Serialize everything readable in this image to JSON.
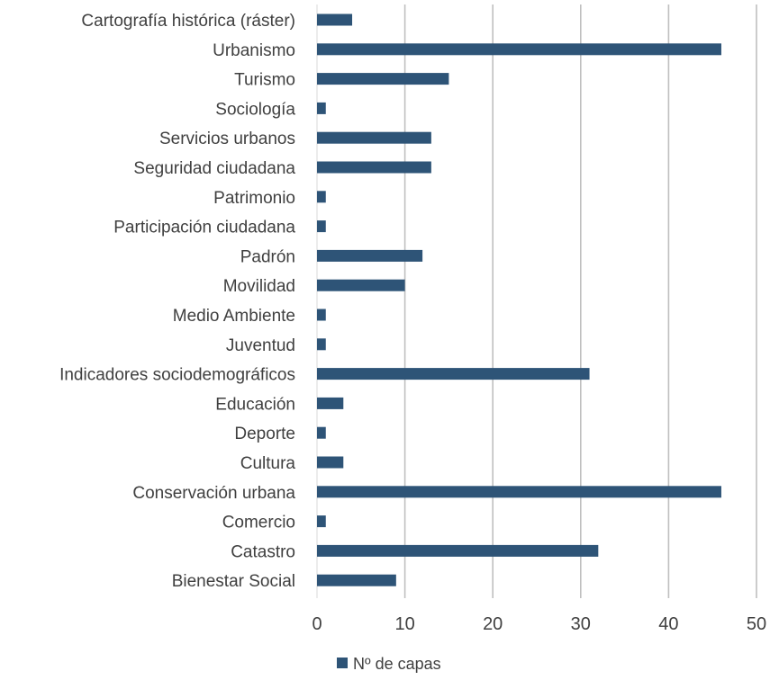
{
  "chart_data": {
    "type": "bar",
    "orientation": "horizontal",
    "categories": [
      "Cartografía histórica (ráster)",
      "Urbanismo",
      "Turismo",
      "Sociología",
      "Servicios urbanos",
      "Seguridad ciudadana",
      "Patrimonio",
      "Participación ciudadana",
      "Padrón",
      "Movilidad",
      "Medio Ambiente",
      "Juventud",
      "Indicadores sociodemográficos",
      "Educación",
      "Deporte",
      "Cultura",
      "Conservación urbana",
      "Comercio",
      "Catastro",
      "Bienestar Social"
    ],
    "series": [
      {
        "name": "Nº de capas",
        "values": [
          4,
          46,
          15,
          1,
          13,
          13,
          1,
          1,
          12,
          10,
          1,
          1,
          31,
          3,
          1,
          3,
          46,
          1,
          32,
          9
        ]
      }
    ],
    "xlim": [
      0,
      50
    ],
    "xticks": [
      "0",
      "10",
      "20",
      "30",
      "40",
      "50"
    ],
    "grid": "vertical",
    "legend_position": "bottom",
    "colors": {
      "bar": "#2e5477",
      "grid": "#bfbfbf",
      "text": "#404040"
    }
  }
}
